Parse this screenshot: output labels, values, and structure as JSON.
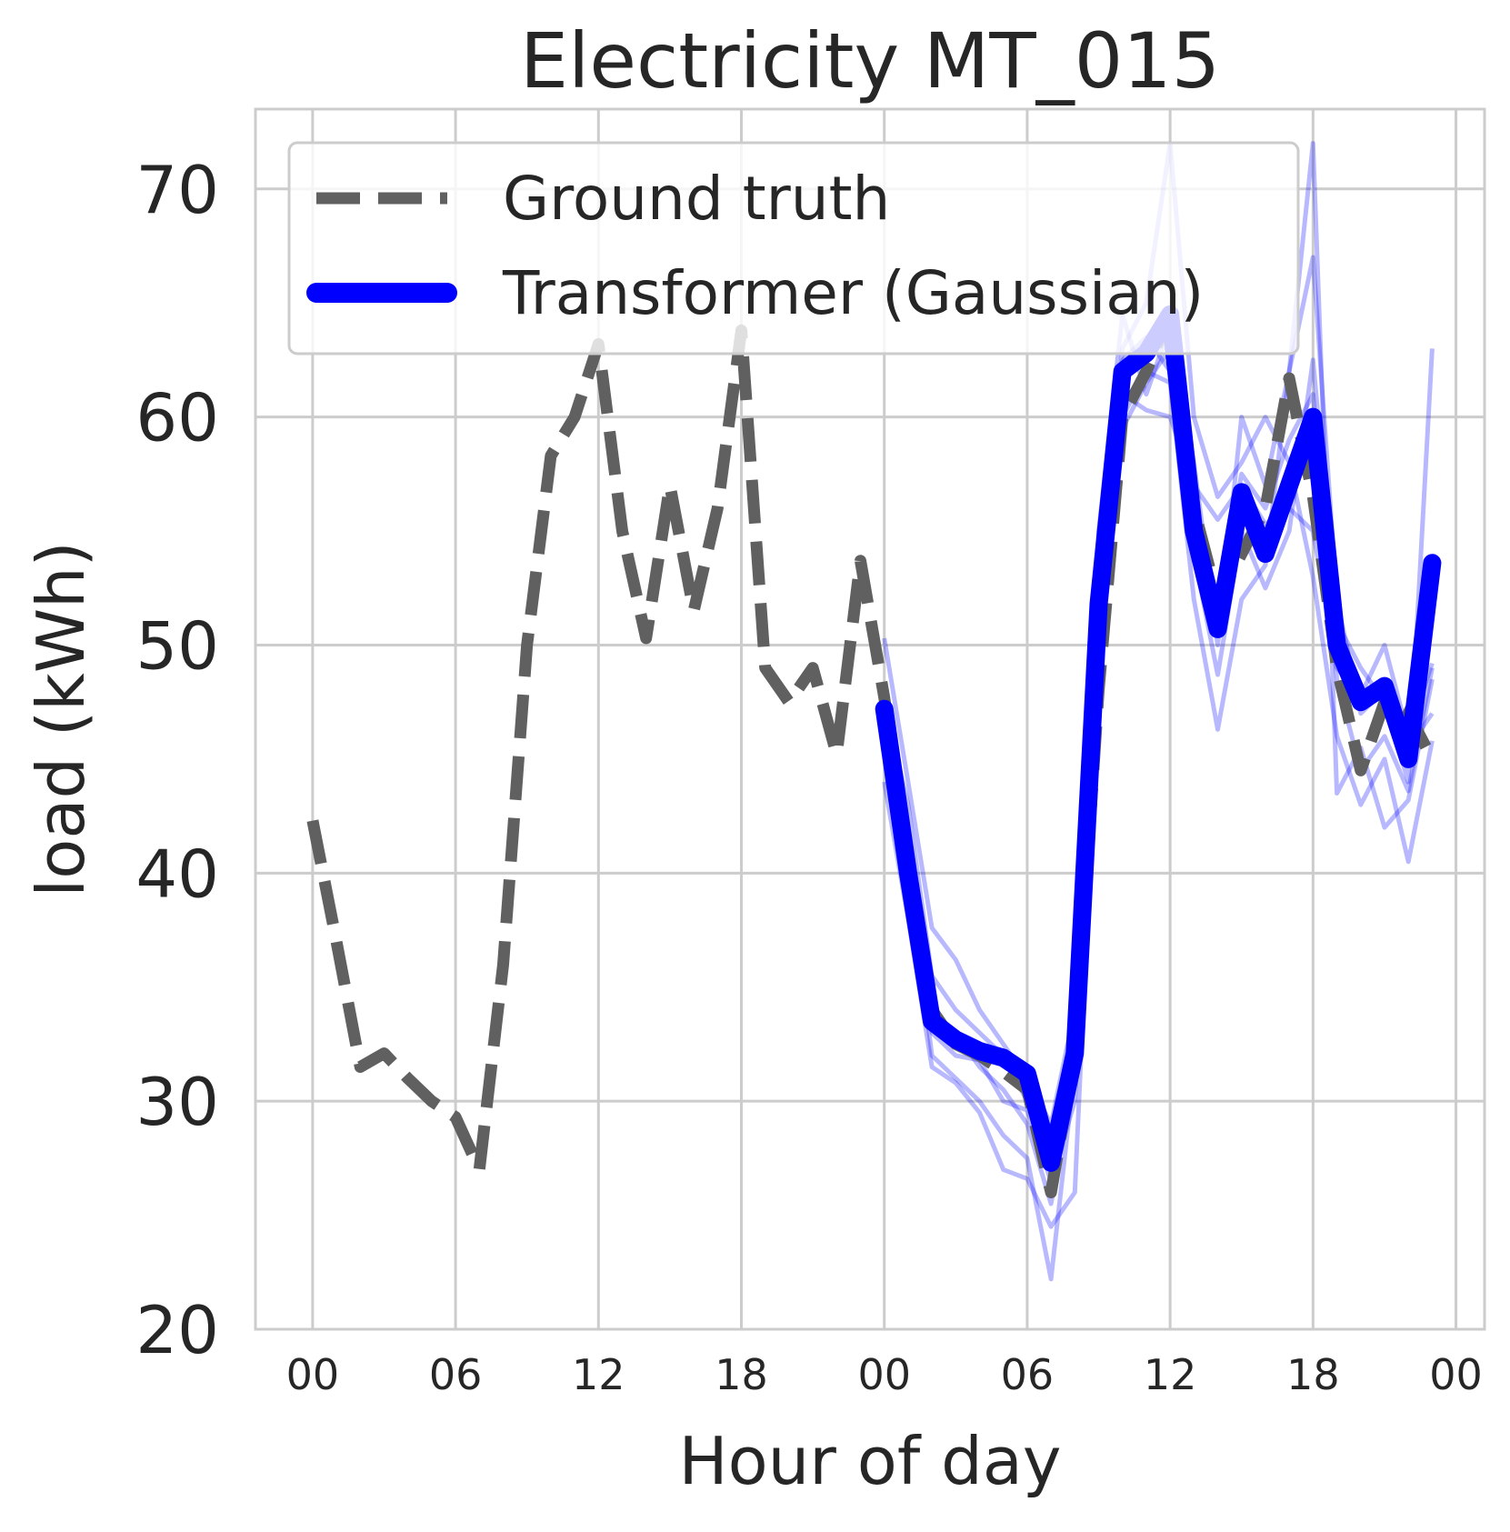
{
  "chart_data": {
    "type": "line",
    "title": "Electricity MT_015",
    "xlabel": "Hour of day",
    "ylabel": "load (kWh)",
    "ylim": [
      20,
      73.5
    ],
    "xlim": [
      -2.4,
      49.2
    ],
    "grid": true,
    "legend_position": "top-left",
    "x_tick_values": [
      0,
      6,
      12,
      18,
      24,
      30,
      36,
      42,
      48
    ],
    "x_tick_labels": [
      "00",
      "06",
      "12",
      "18",
      "00",
      "06",
      "12",
      "18",
      "00"
    ],
    "y_ticks": [
      20,
      30,
      40,
      50,
      60,
      70
    ],
    "series": [
      {
        "name": "Ground truth",
        "style": "dashed",
        "color": "#606060",
        "x": [
          0,
          1,
          2,
          3,
          4,
          5,
          6,
          7,
          8,
          9,
          10,
          11,
          12,
          13,
          14,
          15,
          16,
          17,
          18,
          19,
          20,
          21,
          22,
          23,
          24,
          25,
          26,
          27,
          28,
          29,
          30,
          31,
          32,
          33,
          34,
          35,
          36,
          37,
          38,
          39,
          40,
          41,
          42,
          43,
          44,
          45,
          46,
          47
        ],
        "values": [
          42.3,
          37.0,
          31.5,
          32.1,
          31.0,
          30.0,
          29.3,
          27.0,
          36.0,
          50.0,
          58.3,
          60.0,
          63.2,
          55.0,
          50.3,
          57.0,
          51.5,
          56.0,
          63.8,
          49.0,
          47.5,
          49.0,
          45.2,
          53.7,
          47.7,
          40.5,
          34.0,
          32.5,
          32.0,
          31.3,
          30.5,
          26.0,
          32.0,
          48.0,
          60.0,
          62.0,
          64.5,
          56.0,
          52.0,
          54.0,
          56.0,
          61.7,
          56.5,
          49.0,
          44.5,
          47.5,
          47.0,
          45.0
        ]
      },
      {
        "name": "Transformer (Gaussian)",
        "style": "solid",
        "color": "#0000ff",
        "x": [
          24,
          25,
          26,
          27,
          28,
          29,
          30,
          31,
          32,
          33,
          34,
          35,
          36,
          37,
          38,
          39,
          40,
          41,
          42,
          43,
          44,
          45,
          46,
          47,
          48
        ],
        "values": [
          47.2,
          40.0,
          33.5,
          32.7,
          32.2,
          31.9,
          31.2,
          27.3,
          32.1,
          51.8,
          62.0,
          62.8,
          64.5,
          55.0,
          50.7,
          56.7,
          54.0,
          57.0,
          60.0,
          50.0,
          47.5,
          48.2,
          45.0,
          53.6,
          null
        ]
      }
    ],
    "samples": [
      {
        "x": [
          24,
          25,
          26,
          27,
          28,
          29,
          30,
          31,
          32,
          33,
          34,
          35,
          36,
          37,
          38,
          39,
          40,
          41,
          42,
          43,
          44,
          45,
          46,
          47
        ],
        "values": [
          50.3,
          44.0,
          37.6,
          36.2,
          34.0,
          32.5,
          31.0,
          29.0,
          34.0,
          53.0,
          61.0,
          60.3,
          60.0,
          57.0,
          55.5,
          57.0,
          55.3,
          56.0,
          55.0,
          49.0,
          47.8,
          50.0,
          46.0,
          49.2
        ]
      },
      {
        "x": [
          24,
          25,
          26,
          27,
          28,
          29,
          30,
          31,
          32,
          33,
          34,
          35,
          36,
          37,
          38,
          39,
          40,
          41,
          42,
          43,
          44,
          45,
          46,
          47
        ],
        "values": [
          48.2,
          42.0,
          34.0,
          33.0,
          31.5,
          30.5,
          29.0,
          25.5,
          31.0,
          50.0,
          63.0,
          65.0,
          72.0,
          60.0,
          56.5,
          58.0,
          60.0,
          58.0,
          53.0,
          46.0,
          43.0,
          45.0,
          40.5,
          45.8
        ]
      },
      {
        "x": [
          24,
          25,
          26,
          27,
          28,
          29,
          30,
          31,
          32,
          33,
          34,
          35,
          36,
          37,
          38,
          39,
          40,
          41,
          42,
          43,
          44,
          45,
          46,
          47
        ],
        "values": [
          46.0,
          40.5,
          32.0,
          31.0,
          30.0,
          28.5,
          27.5,
          22.2,
          31.5,
          52.0,
          62.5,
          63.5,
          62.0,
          54.0,
          48.7,
          55.0,
          52.5,
          55.0,
          62.5,
          51.0,
          49.0,
          47.5,
          44.0,
          63.0
        ]
      },
      {
        "x": [
          24,
          25,
          26,
          27,
          28,
          29,
          30,
          31,
          32,
          33,
          34,
          35,
          36,
          37,
          38,
          39,
          40,
          41,
          42,
          43,
          44,
          45,
          46,
          47
        ],
        "values": [
          44.0,
          38.0,
          31.5,
          30.8,
          29.5,
          27.0,
          26.6,
          24.5,
          26.0,
          49.0,
          60.0,
          62.0,
          61.5,
          52.0,
          46.3,
          52.0,
          53.5,
          62.0,
          72.0,
          43.5,
          45.5,
          42.0,
          43.2,
          48.5
        ]
      },
      {
        "x": [
          24,
          25,
          26,
          27,
          28,
          29,
          30,
          31,
          32,
          33,
          34,
          35,
          36,
          37,
          38,
          39,
          40,
          41,
          42,
          43,
          44,
          45,
          46,
          47
        ],
        "values": [
          47.5,
          43.0,
          35.5,
          34.0,
          33.0,
          32.0,
          30.0,
          28.0,
          33.0,
          55.0,
          64.5,
          61.0,
          64.0,
          58.0,
          50.0,
          60.0,
          57.0,
          62.0,
          67.0,
          52.0,
          47.0,
          48.0,
          45.5,
          47.0
        ]
      },
      {
        "x": [
          24,
          25,
          26,
          27,
          28,
          29,
          30,
          31,
          32,
          33,
          34,
          35,
          36,
          37,
          38,
          39,
          40,
          41,
          42,
          43,
          44,
          45,
          46,
          47
        ],
        "values": [
          45.5,
          39.0,
          33.0,
          32.0,
          31.8,
          30.0,
          29.6,
          26.5,
          30.0,
          51.0,
          59.5,
          61.5,
          63.0,
          56.0,
          52.0,
          57.5,
          56.0,
          59.0,
          61.0,
          48.5,
          44.5,
          46.0,
          43.6,
          49.0
        ]
      }
    ]
  }
}
